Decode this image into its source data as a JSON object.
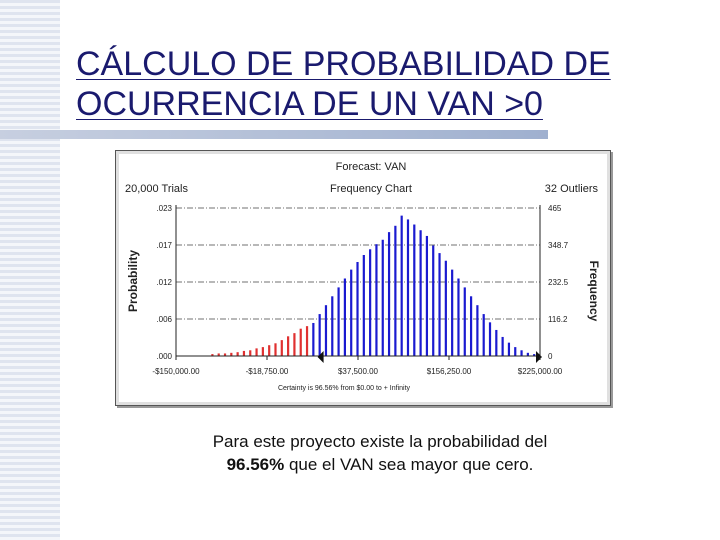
{
  "slide": {
    "title_line1": "CÁLCULO DE PROBABILIDAD DE",
    "title_line2": "OCURRENCIA DE UN VAN >0"
  },
  "caption": {
    "line1": "Para este proyecto existe la probabilidad del",
    "line2_bold": "96.56%",
    "line2_rest": " que el VAN sea mayor que cero."
  },
  "colors": {
    "left_tail": "#e03030",
    "main_bars": "#1a1ad0",
    "title": "#1a1a6e"
  },
  "chart_data": {
    "type": "bar",
    "title": "Forecast: VAN",
    "subtitle": "Frequency Chart",
    "trials_label": "20,000 Trials",
    "outliers_label": "32 Outliers",
    "ylabel": "Probability",
    "ylabel_right": "Frequency",
    "y_ticks_left": [
      ".023",
      ".017",
      ".012",
      ".006",
      ".000"
    ],
    "y_ticks_right": [
      "465",
      "348.7",
      "232.5",
      "116.2",
      "0"
    ],
    "ylim": [
      0,
      0.0233
    ],
    "x_ticks": [
      "-$150,000.00",
      "-$18,750.00",
      "$37,500.00",
      "$156,250.00",
      "$225,000.00"
    ],
    "xlim": [
      -150000,
      225000
    ],
    "certainty_label": "Certainty is 96.56% from $0.00 to + Infinity",
    "certainty_range": [
      0,
      "+Infinity"
    ],
    "certainty_pct": 96.56,
    "grid": true,
    "left_tail_x": [
      -112500,
      -106000,
      -99500,
      -93000,
      -86500,
      -80000,
      -73500,
      -67000,
      -60500,
      -54000,
      -47500,
      -41000,
      -34500,
      -28000,
      -21500,
      -15000
    ],
    "left_tail_values": [
      0.0003,
      0.0004,
      0.0004,
      0.0005,
      0.0006,
      0.0008,
      0.0009,
      0.0012,
      0.0014,
      0.0017,
      0.002,
      0.0025,
      0.0031,
      0.0036,
      0.0043,
      0.0047
    ],
    "main_x": [
      -8500,
      -2000,
      4500,
      11000,
      17500,
      24000,
      30500,
      37000,
      43500,
      50000,
      56500,
      63000,
      69500,
      76000,
      82500,
      89000,
      95500,
      102000,
      108500,
      115000,
      121500,
      128000,
      134500,
      141000,
      147500,
      154000,
      160500,
      167000,
      173500,
      180000,
      186500,
      193000,
      199500,
      206000,
      212500,
      219000
    ],
    "main_values": [
      0.0052,
      0.0066,
      0.008,
      0.0094,
      0.0108,
      0.0122,
      0.0136,
      0.0148,
      0.0159,
      0.0168,
      0.0176,
      0.0183,
      0.0195,
      0.0205,
      0.0221,
      0.0215,
      0.0207,
      0.0198,
      0.0189,
      0.0174,
      0.0162,
      0.015,
      0.0136,
      0.0122,
      0.0108,
      0.0094,
      0.008,
      0.0066,
      0.0053,
      0.0041,
      0.003,
      0.0021,
      0.0014,
      0.0009,
      0.0005,
      0.0003
    ]
  }
}
